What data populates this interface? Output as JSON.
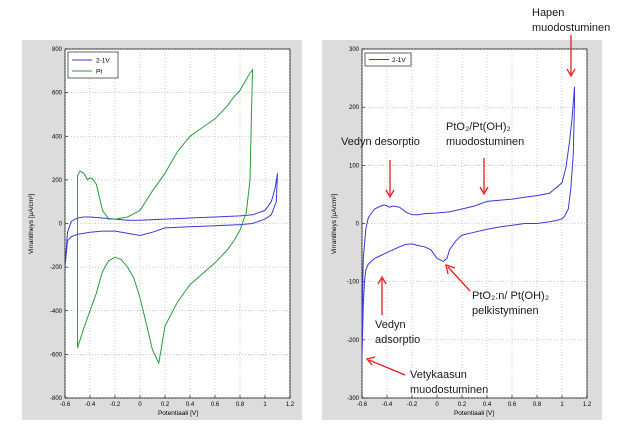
{
  "colors": {
    "blue": "#3a3ad8",
    "green": "#2e9a3e",
    "arrow": "#e02020"
  },
  "chart_data": [
    {
      "type": "line",
      "title": "",
      "xlabel": "Potentiaali [V]",
      "ylabel": "Virrantiheys [µA/cm²]",
      "xlim": [
        -0.6,
        1.2
      ],
      "ylim": [
        -800,
        800
      ],
      "xticks": [
        "-0.6",
        "-0.4",
        "-0.2",
        "0",
        "0.2",
        "0.4",
        "0.6",
        "0.8",
        "1",
        "1.2"
      ],
      "yticks": [
        "-800",
        "-600",
        "-400",
        "-200",
        "0",
        "200",
        "400",
        "600",
        "800"
      ],
      "grid": true,
      "legend": "top-left",
      "series": [
        {
          "name": "2-1V",
          "color": "blue",
          "x": [
            -0.6,
            -0.58,
            -0.55,
            -0.5,
            -0.45,
            -0.4,
            -0.3,
            -0.2,
            -0.1,
            0,
            0.2,
            0.4,
            0.6,
            0.8,
            0.9,
            1.0,
            1.05,
            1.08,
            1.1,
            1.09,
            1.05,
            1.0,
            0.9,
            0.8,
            0.6,
            0.4,
            0.2,
            0.1,
            0.0,
            -0.1,
            -0.2,
            -0.3,
            -0.4,
            -0.5,
            -0.55,
            -0.58,
            -0.6
          ],
          "y": [
            -200,
            -40,
            10,
            25,
            30,
            30,
            25,
            20,
            15,
            15,
            20,
            25,
            30,
            35,
            40,
            60,
            100,
            160,
            230,
            100,
            40,
            20,
            0,
            -5,
            -10,
            -15,
            -20,
            -40,
            -55,
            -45,
            -35,
            -35,
            -40,
            -50,
            -60,
            -80,
            -200
          ]
        },
        {
          "name": "Pt",
          "color": "green",
          "x": [
            -0.5,
            -0.5,
            -0.48,
            -0.45,
            -0.42,
            -0.4,
            -0.38,
            -0.35,
            -0.3,
            -0.25,
            -0.2,
            -0.1,
            0,
            0.1,
            0.2,
            0.3,
            0.4,
            0.5,
            0.6,
            0.7,
            0.75,
            0.8,
            0.85,
            0.88,
            0.9,
            0.88,
            0.85,
            0.8,
            0.75,
            0.7,
            0.6,
            0.5,
            0.4,
            0.3,
            0.2,
            0.15,
            0.1,
            0.05,
            0,
            -0.05,
            -0.1,
            -0.15,
            -0.2,
            -0.25,
            -0.3,
            -0.35,
            -0.4,
            -0.45,
            -0.5
          ],
          "y": [
            -570,
            220,
            240,
            230,
            200,
            210,
            205,
            180,
            60,
            20,
            20,
            30,
            60,
            150,
            230,
            330,
            400,
            440,
            480,
            540,
            580,
            610,
            660,
            690,
            705,
            200,
            50,
            -30,
            -80,
            -120,
            -180,
            -230,
            -280,
            -360,
            -470,
            -640,
            -580,
            -460,
            -340,
            -250,
            -200,
            -165,
            -155,
            -170,
            -220,
            -320,
            -400,
            -480,
            -570
          ]
        }
      ]
    },
    {
      "type": "line",
      "title": "",
      "xlabel": "Potentiaali [V]",
      "ylabel": "Virrantiheys [µA/cm²]",
      "xlim": [
        -0.6,
        1.2
      ],
      "ylim": [
        -300,
        300
      ],
      "xticks": [
        "-0.6",
        "-0.4",
        "-0.2",
        "0",
        "0.2",
        "0.4",
        "0.6",
        "0.8",
        "1",
        "1.2"
      ],
      "yticks": [
        "-300",
        "-200",
        "-100",
        "0",
        "100",
        "200",
        "300"
      ],
      "grid": true,
      "legend": "top-left",
      "series": [
        {
          "name": "2-1V",
          "color": "blue",
          "x": [
            -0.6,
            -0.59,
            -0.57,
            -0.55,
            -0.5,
            -0.45,
            -0.42,
            -0.4,
            -0.38,
            -0.35,
            -0.3,
            -0.25,
            -0.2,
            -0.15,
            -0.1,
            0,
            0.1,
            0.2,
            0.3,
            0.4,
            0.5,
            0.6,
            0.7,
            0.8,
            0.9,
            1.0,
            1.03,
            1.06,
            1.08,
            1.1,
            1.1,
            1.09,
            1.07,
            1.05,
            1.02,
            1.0,
            0.95,
            0.9,
            0.8,
            0.7,
            0.6,
            0.5,
            0.4,
            0.3,
            0.2,
            0.15,
            0.1,
            0.08,
            0.05,
            0.0,
            -0.05,
            -0.1,
            -0.15,
            -0.2,
            -0.25,
            -0.3,
            -0.35,
            -0.4,
            -0.45,
            -0.5,
            -0.55,
            -0.57,
            -0.58,
            -0.59,
            -0.6
          ],
          "y": [
            -180,
            -60,
            -10,
            10,
            25,
            30,
            32,
            30,
            28,
            30,
            28,
            20,
            15,
            15,
            17,
            18,
            20,
            25,
            30,
            38,
            40,
            42,
            45,
            48,
            52,
            70,
            95,
            140,
            180,
            235,
            210,
            120,
            60,
            25,
            12,
            8,
            5,
            3,
            0,
            0,
            -3,
            -6,
            -10,
            -15,
            -20,
            -30,
            -45,
            -60,
            -65,
            -60,
            -45,
            -40,
            -38,
            -35,
            -36,
            -40,
            -45,
            -50,
            -55,
            -60,
            -70,
            -80,
            -100,
            -140,
            -230
          ]
        }
      ]
    }
  ],
  "annotations": {
    "hapen_1": "Hapen",
    "hapen_2": "muodostuminen",
    "vedyn_desorptio": "Vedyn desorptio",
    "pto2_form_1": "PtO₂/Pt(OH)₂",
    "pto2_form_2": "muodostuminen",
    "pto2_red_1": "PtO₂:n/ Pt(OH)₂",
    "pto2_red_2": "pelkistyminen",
    "vedyn_ads_1": "Vedyn",
    "vedyn_ads_2": "adsorptio",
    "vetykaasun_1": "Vetykaasun",
    "vetykaasun_2": "muodostuminen"
  }
}
